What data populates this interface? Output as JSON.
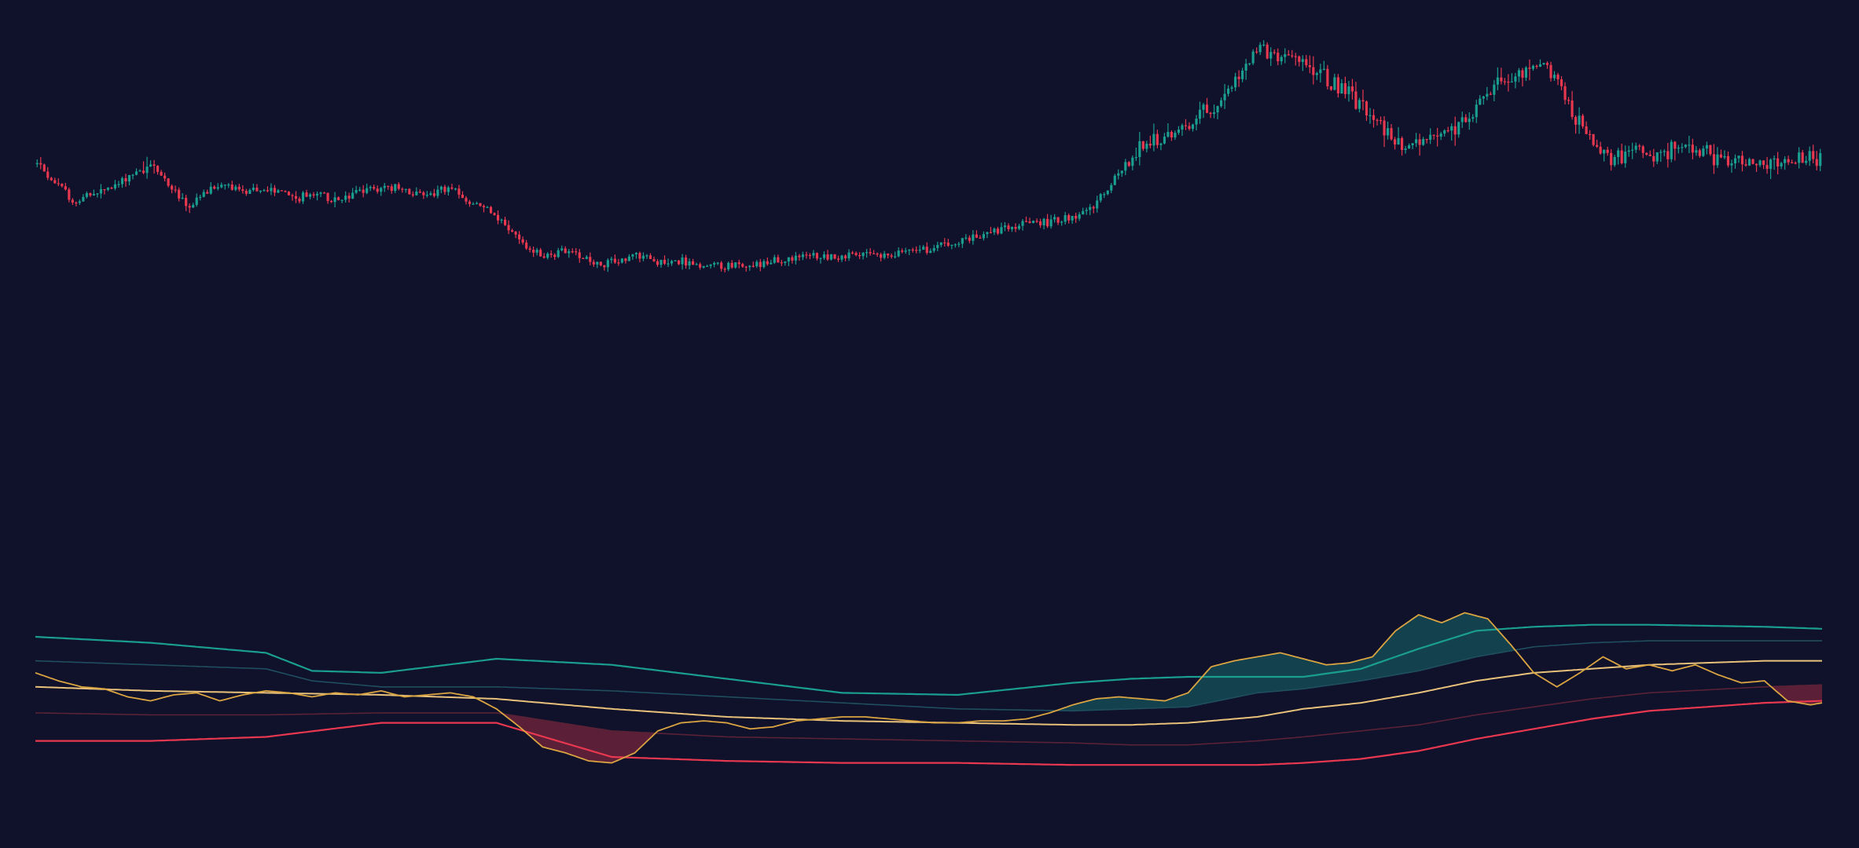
{
  "colors": {
    "background": "#10112b",
    "bullish": "#1a9e8f",
    "bearish": "#e8384f",
    "oscillator": "#d9a441",
    "upper_band_outer": "#1a9e8f",
    "upper_band_inner": "#1f4f5e",
    "middle_line": "#e8c27a",
    "lower_band_inner": "#5a2236",
    "lower_band_outer": "#e8384f",
    "upper_fill": "#1a9e8f",
    "lower_fill": "#e8384f"
  },
  "chart_data": [
    {
      "type": "candlestick",
      "title": "",
      "xlabel": "",
      "ylabel": "",
      "grid": false,
      "legend": "none",
      "candle_count": 504,
      "ylim": [
        0,
        100
      ],
      "close_path": [
        [
          0,
          76
        ],
        [
          8,
          72
        ],
        [
          16,
          68
        ],
        [
          24,
          70
        ],
        [
          32,
          71
        ],
        [
          40,
          74
        ],
        [
          48,
          76
        ],
        [
          56,
          72
        ],
        [
          64,
          67
        ],
        [
          72,
          70
        ],
        [
          80,
          72
        ],
        [
          88,
          70
        ],
        [
          96,
          71
        ],
        [
          104,
          70
        ],
        [
          112,
          69
        ],
        [
          120,
          70
        ],
        [
          128,
          68
        ],
        [
          136,
          70
        ],
        [
          144,
          71
        ],
        [
          152,
          71
        ],
        [
          160,
          70
        ],
        [
          168,
          70
        ],
        [
          176,
          71
        ],
        [
          184,
          68
        ],
        [
          192,
          67
        ],
        [
          200,
          63
        ],
        [
          208,
          59
        ],
        [
          216,
          57
        ],
        [
          224,
          58
        ],
        [
          232,
          57
        ],
        [
          240,
          55
        ],
        [
          248,
          56
        ],
        [
          256,
          57
        ],
        [
          264,
          56
        ],
        [
          272,
          56
        ],
        [
          280,
          55
        ],
        [
          288,
          55
        ],
        [
          296,
          55
        ],
        [
          304,
          55
        ],
        [
          312,
          56
        ],
        [
          320,
          56
        ],
        [
          328,
          57
        ],
        [
          336,
          57
        ],
        [
          344,
          57
        ],
        [
          352,
          57
        ],
        [
          360,
          57
        ],
        [
          368,
          58
        ],
        [
          376,
          58
        ],
        [
          384,
          59
        ],
        [
          392,
          60
        ],
        [
          400,
          61
        ],
        [
          408,
          62
        ],
        [
          416,
          63
        ],
        [
          424,
          64
        ],
        [
          432,
          64
        ],
        [
          440,
          65
        ],
        [
          448,
          66
        ],
        [
          456,
          71
        ],
        [
          464,
          76
        ],
        [
          472,
          80
        ],
        [
          480,
          81
        ],
        [
          488,
          83
        ],
        [
          496,
          86
        ],
        [
          504,
          89
        ],
        [
          512,
          94
        ],
        [
          520,
          100
        ],
        [
          528,
          99
        ],
        [
          536,
          97
        ],
        [
          544,
          95
        ],
        [
          552,
          93
        ],
        [
          560,
          90
        ],
        [
          568,
          87
        ],
        [
          576,
          82
        ],
        [
          584,
          79
        ],
        [
          592,
          81
        ],
        [
          600,
          82
        ],
        [
          608,
          85
        ],
        [
          616,
          90
        ],
        [
          624,
          93
        ],
        [
          632,
          95
        ],
        [
          640,
          97
        ],
        [
          648,
          93
        ],
        [
          656,
          85
        ],
        [
          664,
          80
        ],
        [
          672,
          77
        ],
        [
          680,
          80
        ],
        [
          688,
          78
        ],
        [
          696,
          79
        ],
        [
          704,
          80
        ],
        [
          712,
          78
        ],
        [
          720,
          76
        ],
        [
          728,
          77
        ],
        [
          736,
          76
        ],
        [
          744,
          76
        ],
        [
          752,
          77
        ],
        [
          760,
          77
        ]
      ],
      "close_path_note": ""
    },
    {
      "type": "line",
      "title": "",
      "xlabel": "",
      "ylabel": "",
      "grid": false,
      "legend": "none",
      "ylim": [
        0,
        100
      ],
      "series": [
        {
          "key": "upper_outer",
          "values": [
            [
              0,
              80
            ],
            [
              100,
              77
            ],
            [
              200,
              72
            ],
            [
              240,
              63
            ],
            [
              300,
              62
            ],
            [
              400,
              69
            ],
            [
              500,
              66
            ],
            [
              600,
              59
            ],
            [
              700,
              52
            ],
            [
              800,
              51
            ],
            [
              900,
              57
            ],
            [
              950,
              59
            ],
            [
              1000,
              60
            ],
            [
              1060,
              60
            ],
            [
              1100,
              60
            ],
            [
              1150,
              64
            ],
            [
              1200,
              74
            ],
            [
              1250,
              83
            ],
            [
              1300,
              85
            ],
            [
              1350,
              86
            ],
            [
              1400,
              86
            ],
            [
              1500,
              85
            ],
            [
              1550,
              84
            ]
          ]
        },
        {
          "key": "upper_inner",
          "values": [
            [
              0,
              68
            ],
            [
              100,
              66
            ],
            [
              200,
              64
            ],
            [
              240,
              58
            ],
            [
              300,
              55
            ],
            [
              400,
              55
            ],
            [
              500,
              53
            ],
            [
              600,
              50
            ],
            [
              700,
              47
            ],
            [
              800,
              44
            ],
            [
              900,
              43
            ],
            [
              950,
              44
            ],
            [
              1000,
              45
            ],
            [
              1060,
              52
            ],
            [
              1100,
              54
            ],
            [
              1150,
              58
            ],
            [
              1200,
              63
            ],
            [
              1250,
              70
            ],
            [
              1300,
              75
            ],
            [
              1350,
              77
            ],
            [
              1400,
              78
            ],
            [
              1500,
              78
            ],
            [
              1550,
              78
            ]
          ]
        },
        {
          "key": "middle",
          "values": [
            [
              0,
              55
            ],
            [
              100,
              53
            ],
            [
              200,
              52
            ],
            [
              300,
              51
            ],
            [
              400,
              49
            ],
            [
              500,
              44
            ],
            [
              600,
              40
            ],
            [
              700,
              38
            ],
            [
              800,
              37
            ],
            [
              900,
              36
            ],
            [
              950,
              36
            ],
            [
              1000,
              37
            ],
            [
              1060,
              40
            ],
            [
              1100,
              44
            ],
            [
              1150,
              47
            ],
            [
              1200,
              52
            ],
            [
              1250,
              58
            ],
            [
              1300,
              62
            ],
            [
              1350,
              64
            ],
            [
              1400,
              66
            ],
            [
              1500,
              68
            ],
            [
              1550,
              68
            ]
          ]
        },
        {
          "key": "lower_inner",
          "values": [
            [
              0,
              42
            ],
            [
              100,
              41
            ],
            [
              200,
              41
            ],
            [
              300,
              42
            ],
            [
              400,
              42
            ],
            [
              500,
              33
            ],
            [
              600,
              30
            ],
            [
              700,
              29
            ],
            [
              800,
              28
            ],
            [
              900,
              27
            ],
            [
              950,
              26
            ],
            [
              1000,
              26
            ],
            [
              1060,
              28
            ],
            [
              1100,
              30
            ],
            [
              1150,
              33
            ],
            [
              1200,
              36
            ],
            [
              1250,
              41
            ],
            [
              1300,
              45
            ],
            [
              1350,
              49
            ],
            [
              1400,
              52
            ],
            [
              1500,
              55
            ],
            [
              1550,
              56
            ]
          ]
        },
        {
          "key": "lower_outer",
          "values": [
            [
              0,
              28
            ],
            [
              100,
              28
            ],
            [
              200,
              30
            ],
            [
              300,
              37
            ],
            [
              400,
              37
            ],
            [
              500,
              20
            ],
            [
              600,
              18
            ],
            [
              700,
              17
            ],
            [
              800,
              17
            ],
            [
              900,
              16
            ],
            [
              950,
              16
            ],
            [
              1000,
              16
            ],
            [
              1060,
              16
            ],
            [
              1100,
              17
            ],
            [
              1150,
              19
            ],
            [
              1200,
              23
            ],
            [
              1250,
              29
            ],
            [
              1300,
              34
            ],
            [
              1350,
              39
            ],
            [
              1400,
              43
            ],
            [
              1500,
              47
            ],
            [
              1550,
              48
            ]
          ]
        },
        {
          "key": "oscillator",
          "values": [
            [
              0,
              62
            ],
            [
              20,
              58
            ],
            [
              40,
              55
            ],
            [
              60,
              54
            ],
            [
              80,
              50
            ],
            [
              100,
              48
            ],
            [
              120,
              51
            ],
            [
              140,
              52
            ],
            [
              160,
              48
            ],
            [
              180,
              51
            ],
            [
              200,
              53
            ],
            [
              220,
              52
            ],
            [
              240,
              50
            ],
            [
              260,
              52
            ],
            [
              280,
              51
            ],
            [
              300,
              53
            ],
            [
              320,
              50
            ],
            [
              340,
              51
            ],
            [
              360,
              52
            ],
            [
              380,
              50
            ],
            [
              400,
              44
            ],
            [
              420,
              35
            ],
            [
              440,
              25
            ],
            [
              460,
              22
            ],
            [
              480,
              18
            ],
            [
              500,
              17
            ],
            [
              520,
              22
            ],
            [
              540,
              33
            ],
            [
              560,
              37
            ],
            [
              580,
              38
            ],
            [
              600,
              37
            ],
            [
              620,
              34
            ],
            [
              640,
              35
            ],
            [
              660,
              38
            ],
            [
              680,
              39
            ],
            [
              700,
              40
            ],
            [
              720,
              40
            ],
            [
              740,
              39
            ],
            [
              760,
              38
            ],
            [
              780,
              37
            ],
            [
              800,
              37
            ],
            [
              820,
              38
            ],
            [
              840,
              38
            ],
            [
              860,
              39
            ],
            [
              880,
              42
            ],
            [
              900,
              46
            ],
            [
              920,
              49
            ],
            [
              940,
              50
            ],
            [
              960,
              49
            ],
            [
              980,
              48
            ],
            [
              1000,
              52
            ],
            [
              1020,
              65
            ],
            [
              1040,
              68
            ],
            [
              1060,
              70
            ],
            [
              1080,
              72
            ],
            [
              1100,
              69
            ],
            [
              1120,
              66
            ],
            [
              1140,
              67
            ],
            [
              1160,
              70
            ],
            [
              1180,
              83
            ],
            [
              1200,
              91
            ],
            [
              1220,
              87
            ],
            [
              1240,
              92
            ],
            [
              1260,
              89
            ],
            [
              1280,
              76
            ],
            [
              1300,
              62
            ],
            [
              1320,
              55
            ],
            [
              1340,
              62
            ],
            [
              1360,
              70
            ],
            [
              1380,
              64
            ],
            [
              1400,
              66
            ],
            [
              1420,
              63
            ],
            [
              1440,
              66
            ],
            [
              1460,
              61
            ],
            [
              1480,
              57
            ],
            [
              1500,
              58
            ],
            [
              1520,
              48
            ],
            [
              1540,
              46
            ],
            [
              1550,
              47
            ]
          ]
        }
      ]
    }
  ]
}
